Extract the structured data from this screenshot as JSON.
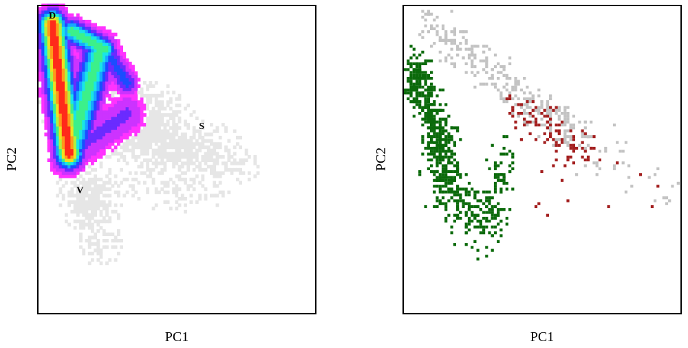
{
  "colors": {
    "background_cloud": "#e6e6e6",
    "density_scale": [
      "#ff33ff",
      "#cc33ff",
      "#6a2bff",
      "#1a4dff",
      "#17a7ff",
      "#19e6e6",
      "#3cf08a",
      "#b4f03c",
      "#f0e020",
      "#ff9a1a",
      "#ff2a1a"
    ],
    "grey_series": "#c3c3c3",
    "green_series": "#0b6a0b",
    "red_series": "#a31f1f"
  },
  "chart_data": [
    {
      "type": "heatmap",
      "panel": "left",
      "title": "",
      "xlabel": "PC1",
      "ylabel": "PC2",
      "xlim": [
        0,
        1
      ],
      "ylim": [
        0,
        1
      ],
      "ticks_shown": false,
      "grid": false,
      "legend": "none",
      "value_scale": [
        0,
        10
      ],
      "background_cloud": [
        {
          "x": 0.14,
          "y": 0.72,
          "sx": 0.07,
          "sy": 0.07,
          "w": 1.0
        },
        {
          "x": 0.34,
          "y": 0.62,
          "sx": 0.1,
          "sy": 0.07,
          "w": 0.8
        },
        {
          "x": 0.55,
          "y": 0.54,
          "sx": 0.1,
          "sy": 0.05,
          "w": 0.5
        },
        {
          "x": 0.7,
          "y": 0.48,
          "sx": 0.07,
          "sy": 0.04,
          "w": 0.2
        },
        {
          "x": 0.18,
          "y": 0.38,
          "sx": 0.06,
          "sy": 0.06,
          "w": 0.6
        },
        {
          "x": 0.22,
          "y": 0.22,
          "sx": 0.05,
          "sy": 0.05,
          "w": 0.3
        },
        {
          "x": 0.52,
          "y": 0.4,
          "sx": 0.12,
          "sy": 0.06,
          "w": 0.2
        }
      ],
      "density_ridges": [
        {
          "from": [
            0.05,
            0.94
          ],
          "to": [
            0.11,
            0.52
          ],
          "peak": 10,
          "width": 0.03
        },
        {
          "from": [
            0.11,
            0.52
          ],
          "to": [
            0.22,
            0.85
          ],
          "peak": 6,
          "width": 0.035
        },
        {
          "from": [
            0.12,
            0.92
          ],
          "to": [
            0.24,
            0.86
          ],
          "peak": 6,
          "width": 0.025
        },
        {
          "from": [
            0.24,
            0.86
          ],
          "to": [
            0.32,
            0.75
          ],
          "peak": 3,
          "width": 0.025
        },
        {
          "from": [
            0.11,
            0.52
          ],
          "to": [
            0.32,
            0.65
          ],
          "peak": 2,
          "width": 0.04
        }
      ],
      "annotations": [
        {
          "text": "D",
          "x": 0.05,
          "y": 0.96
        },
        {
          "text": "S",
          "x": 0.59,
          "y": 0.6
        },
        {
          "text": "V",
          "x": 0.15,
          "y": 0.39
        }
      ]
    },
    {
      "type": "scatter",
      "panel": "right",
      "title": "",
      "xlabel": "PC1",
      "ylabel": "PC2",
      "xlim": [
        0,
        1
      ],
      "ylim": [
        0,
        1
      ],
      "ticks_shown": false,
      "grid": false,
      "legend": "none",
      "series": [
        {
          "color": "#c3c3c3",
          "clusters": [
            {
              "from": [
                0.07,
                0.96
              ],
              "to": [
                0.66,
                0.55
              ],
              "spread": 0.035,
              "n": 330
            },
            {
              "from": [
                0.66,
                0.55
              ],
              "to": [
                0.98,
                0.4
              ],
              "spread": 0.05,
              "n": 35
            }
          ]
        },
        {
          "color": "#0b6a0b",
          "clusters": [
            {
              "from": [
                0.02,
                0.82
              ],
              "to": [
                0.16,
                0.45
              ],
              "spread": 0.035,
              "n": 480
            },
            {
              "from": [
                0.1,
                0.45
              ],
              "to": [
                0.3,
                0.28
              ],
              "spread": 0.045,
              "n": 200
            },
            {
              "from": [
                0.3,
                0.28
              ],
              "to": [
                0.36,
                0.52
              ],
              "spread": 0.035,
              "n": 90
            }
          ]
        },
        {
          "color": "#a31f1f",
          "clusters": [
            {
              "from": [
                0.38,
                0.68
              ],
              "to": [
                0.68,
                0.52
              ],
              "spread": 0.035,
              "n": 90
            },
            {
              "from": [
                0.45,
                0.4
              ],
              "to": [
                0.9,
                0.4
              ],
              "spread": 0.06,
              "n": 12
            }
          ]
        }
      ]
    }
  ]
}
